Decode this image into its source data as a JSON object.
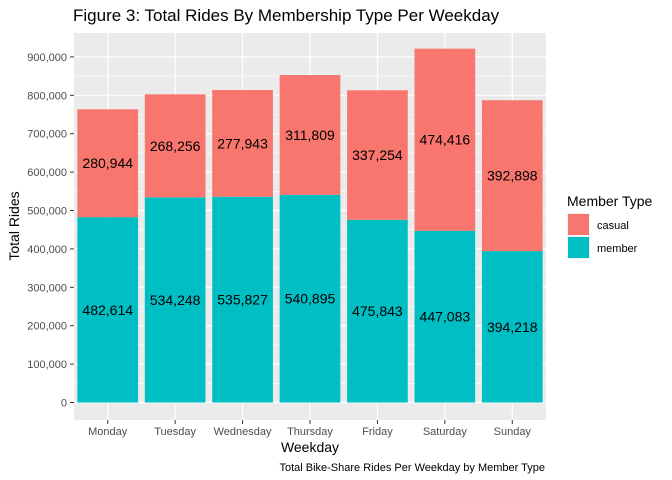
{
  "chart_data": {
    "type": "bar",
    "stacked": true,
    "title": "Figure 3: Total Rides By Membership Type Per Weekday",
    "xlabel": "Weekday",
    "ylabel": "Total Rides",
    "caption": "Total Bike-Share Rides Per Weekday by Member Type",
    "categories": [
      "Monday",
      "Tuesday",
      "Wednesday",
      "Thursday",
      "Friday",
      "Saturday",
      "Sunday"
    ],
    "series": [
      {
        "name": "member",
        "color": "#00BFC4",
        "values": [
          482614,
          534248,
          535827,
          540895,
          475843,
          447083,
          394218
        ]
      },
      {
        "name": "casual",
        "color": "#F8766D",
        "values": [
          280944,
          268256,
          277943,
          311809,
          337254,
          474416,
          392898
        ]
      }
    ],
    "data_labels": {
      "member": [
        "482,614",
        "534,248",
        "535,827",
        "540,895",
        "475,843",
        "447,083",
        "394,218"
      ],
      "casual": [
        "280,944",
        "268,256",
        "277,943",
        "311,809",
        "337,254",
        "474,416",
        "392,898"
      ]
    },
    "ylim": [
      0,
      950000
    ],
    "yticks": [
      0,
      100000,
      200000,
      300000,
      400000,
      500000,
      600000,
      700000,
      800000,
      900000
    ],
    "ytick_labels": [
      "0",
      "100,000",
      "200,000",
      "300,000",
      "400,000",
      "500,000",
      "600,000",
      "700,000",
      "800,000",
      "900,000"
    ],
    "legend": {
      "title": "Member Type",
      "position": "right",
      "entries": [
        {
          "label": "casual",
          "color": "#F8766D"
        },
        {
          "label": "member",
          "color": "#00BFC4"
        }
      ]
    },
    "grid": true,
    "panel_color": "#EBEBEB"
  }
}
